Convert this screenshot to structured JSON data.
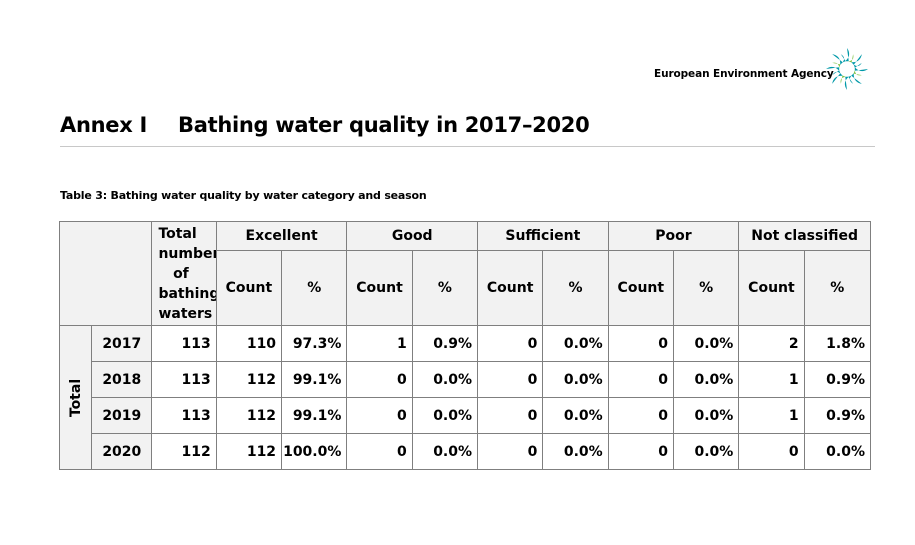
{
  "brand": {
    "name": "European Environment Agency",
    "logo_icon": "eea-sunburst-logo",
    "logo_color": "#0099a8",
    "logo_accent": "#7dc242"
  },
  "heading": {
    "annex_label": "Annex I",
    "title": "Bathing water quality in 2017–2020"
  },
  "caption": "Table 3: Bathing water quality by water category and season",
  "table": {
    "header_total": [
      "Total",
      "number",
      "of",
      "bathing",
      "waters"
    ],
    "groups": [
      "Excellent",
      "Good",
      "Sufficient",
      "Poor",
      "Not classified"
    ],
    "sub_count": "Count",
    "sub_pct": "%",
    "row_group": "Total",
    "rows": [
      {
        "year": "2017",
        "total": "113",
        "cells": [
          "110",
          "97.3%",
          "1",
          "0.9%",
          "0",
          "0.0%",
          "0",
          "0.0%",
          "2",
          "1.8%"
        ]
      },
      {
        "year": "2018",
        "total": "113",
        "cells": [
          "112",
          "99.1%",
          "0",
          "0.0%",
          "0",
          "0.0%",
          "0",
          "0.0%",
          "1",
          "0.9%"
        ]
      },
      {
        "year": "2019",
        "total": "113",
        "cells": [
          "112",
          "99.1%",
          "0",
          "0.0%",
          "0",
          "0.0%",
          "0",
          "0.0%",
          "1",
          "0.9%"
        ]
      },
      {
        "year": "2020",
        "total": "112",
        "cells": [
          "112",
          "100.0%",
          "0",
          "0.0%",
          "0",
          "0.0%",
          "0",
          "0.0%",
          "0",
          "0.0%"
        ]
      }
    ]
  }
}
